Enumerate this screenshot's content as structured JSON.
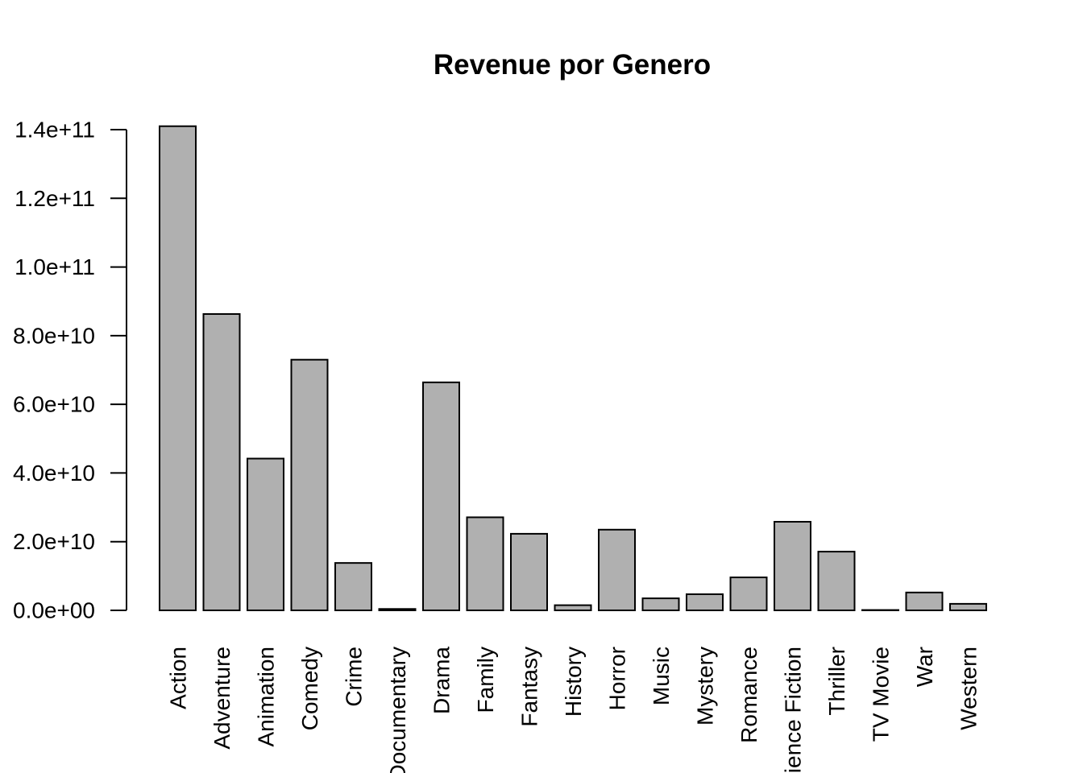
{
  "chart_data": {
    "type": "bar",
    "title": "Revenue por Genero",
    "xlabel": "",
    "ylabel": "",
    "ylim": [
      0,
      140000000000
    ],
    "yticks": [
      {
        "value": 0,
        "label": "0.0e+00"
      },
      {
        "value": 20000000000,
        "label": "2.0e+10"
      },
      {
        "value": 40000000000,
        "label": "4.0e+10"
      },
      {
        "value": 60000000000,
        "label": "6.0e+10"
      },
      {
        "value": 80000000000,
        "label": "8.0e+10"
      },
      {
        "value": 100000000000,
        "label": "1.0e+11"
      },
      {
        "value": 120000000000,
        "label": "1.2e+11"
      },
      {
        "value": 140000000000,
        "label": "1.4e+11"
      }
    ],
    "categories": [
      "Action",
      "Adventure",
      "Animation",
      "Comedy",
      "Crime",
      "Documentary",
      "Drama",
      "Family",
      "Fantasy",
      "History",
      "Horror",
      "Music",
      "Mystery",
      "Romance",
      "Science Fiction",
      "Thriller",
      "TV Movie",
      "War",
      "Western"
    ],
    "values": [
      141000000000,
      86300000000,
      44200000000,
      73000000000,
      13800000000,
      400000000,
      66400000000,
      27100000000,
      22300000000,
      1500000000,
      23500000000,
      3500000000,
      4700000000,
      9600000000,
      25800000000,
      17100000000,
      100000000,
      5200000000,
      1900000000
    ],
    "bar_color": "#b0b0b0",
    "grid": false,
    "legend": "none"
  }
}
